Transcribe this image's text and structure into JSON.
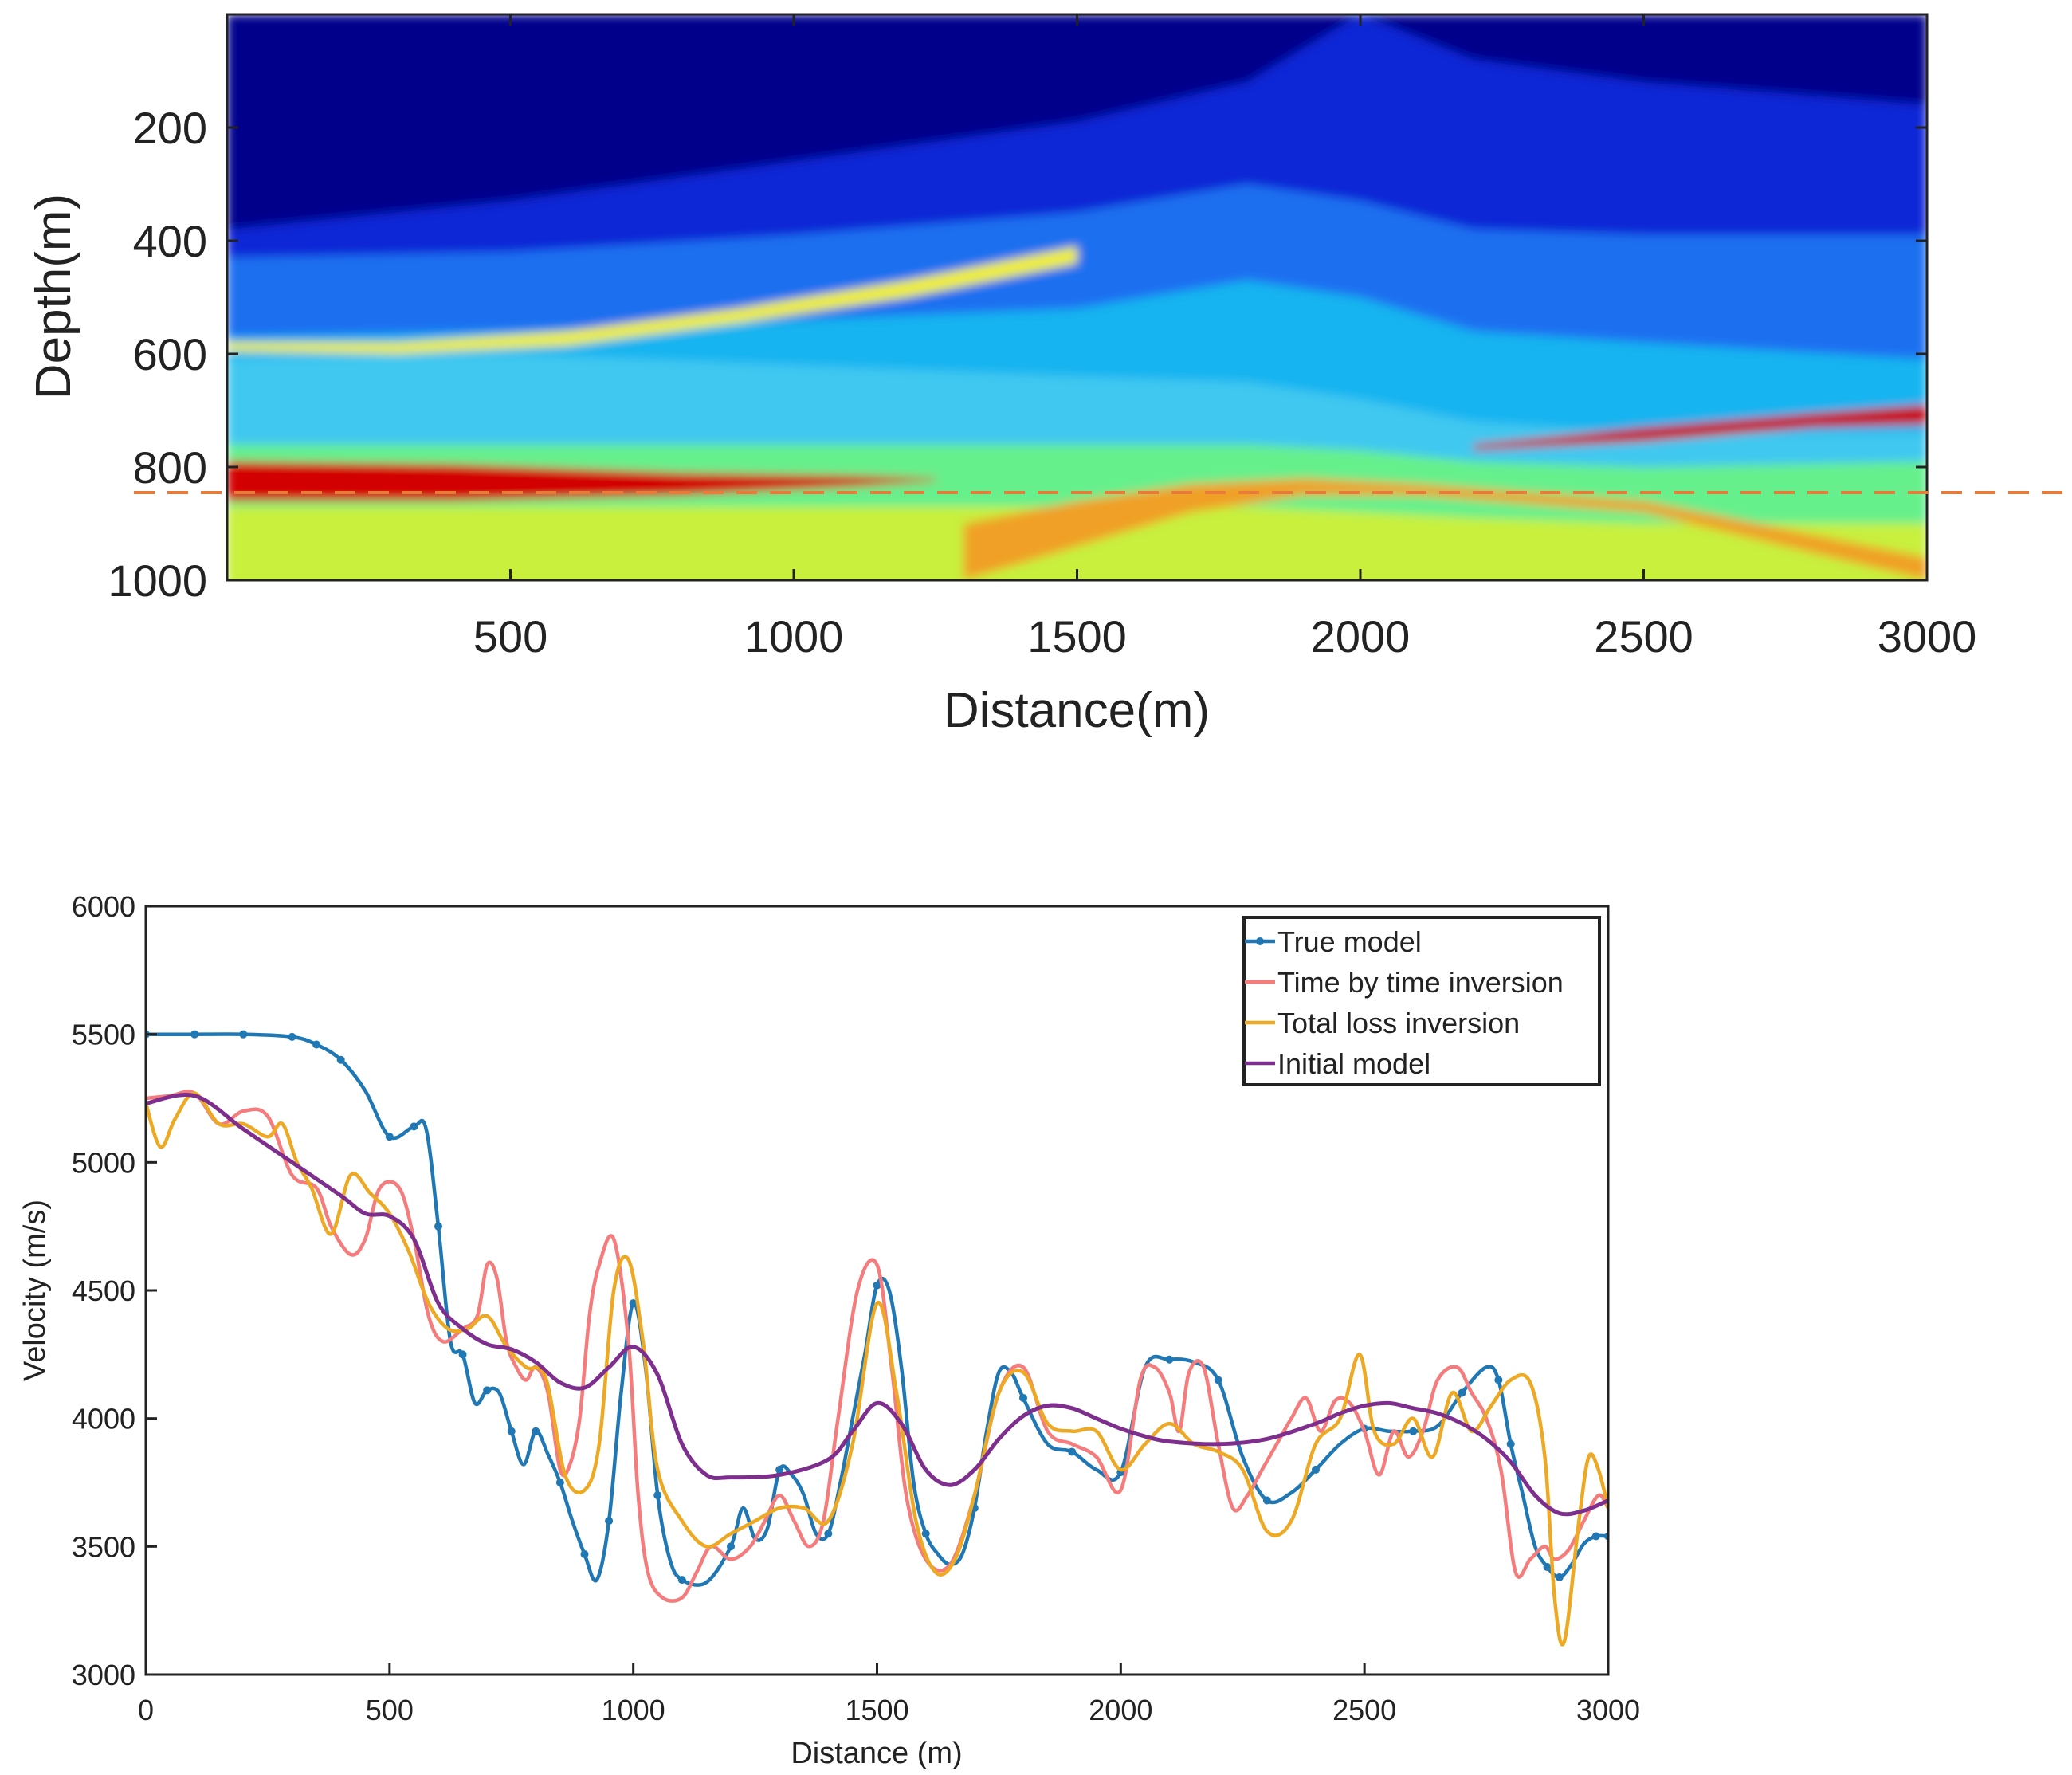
{
  "chart_data": [
    {
      "type": "heatmap",
      "title": "",
      "xlabel": "Distance(m)",
      "ylabel": "Depth(m)",
      "xlim": [
        0,
        3000
      ],
      "ylim": [
        0,
        1000
      ],
      "x_ticks": [
        500,
        1000,
        1500,
        2000,
        2500,
        3000
      ],
      "y_ticks": [
        200,
        400,
        600,
        800,
        1000
      ],
      "colormap": "jet",
      "reference_line": {
        "orientation": "horizontal",
        "depth": 845,
        "color": "#E87A3A",
        "style": "dashed"
      },
      "velocity_layers": [
        {
          "name": "top-layer-1",
          "x": [
            0,
            500,
            1000,
            1500,
            1800,
            2000,
            2200,
            2500,
            3000
          ],
          "depth": [
            0,
            0,
            0,
            0,
            0,
            0,
            0,
            0,
            0
          ],
          "color": "#00008B"
        },
        {
          "name": "top-layer-2",
          "x": [
            0,
            500,
            1000,
            1500,
            1800,
            2000,
            2200,
            2500,
            3000
          ],
          "depth": [
            380,
            330,
            260,
            190,
            120,
            0,
            80,
            120,
            160
          ],
          "color": "#0A28D6"
        },
        {
          "name": "layer-3",
          "x": [
            0,
            500,
            1000,
            1500,
            1800,
            2000,
            2200,
            2500,
            3000
          ],
          "depth": [
            430,
            420,
            390,
            350,
            300,
            330,
            380,
            390,
            390
          ],
          "color": "#1E6FF0"
        },
        {
          "name": "layer-4",
          "x": [
            0,
            500,
            1000,
            1500,
            1800,
            2000,
            2200,
            2500,
            3000
          ],
          "depth": [
            570,
            560,
            540,
            520,
            470,
            500,
            560,
            580,
            610
          ],
          "color": "#19B4F0"
        },
        {
          "name": "layer-5",
          "x": [
            0,
            500,
            1000,
            1500,
            1800,
            2000,
            2200,
            2500,
            3000
          ],
          "depth": [
            610,
            600,
            620,
            640,
            650,
            680,
            720,
            740,
            740
          ],
          "color": "#3FC8F0"
        },
        {
          "name": "layer-6",
          "x": [
            0,
            500,
            1000,
            1500,
            1800,
            2000,
            2200,
            2500,
            3000
          ],
          "depth": [
            760,
            760,
            760,
            760,
            760,
            770,
            790,
            800,
            790
          ],
          "color": "#66F08C"
        },
        {
          "name": "layer-7",
          "x": [
            0,
            500,
            1000,
            1500,
            1800,
            2000,
            2200,
            2500,
            3000
          ],
          "depth": [
            870,
            870,
            870,
            870,
            870,
            880,
            890,
            900,
            900
          ],
          "color": "#C8F03C"
        }
      ],
      "bright_reflectors": [
        {
          "name": "red-layer-left",
          "x": [
            0,
            400,
            800,
            1100,
            1250
          ],
          "top": [
            790,
            795,
            810,
            815,
            820
          ],
          "bottom": [
            860,
            860,
            850,
            835,
            825
          ],
          "color": "#D20000"
        },
        {
          "name": "red-layer-right",
          "x": [
            2200,
            2500,
            2800,
            3000
          ],
          "top": [
            760,
            730,
            705,
            690
          ],
          "bottom": [
            770,
            755,
            730,
            725
          ],
          "color": "#C80000"
        },
        {
          "name": "yellow-band-1",
          "x": [
            0,
            300,
            600,
            900,
            1200,
            1500
          ],
          "top": [
            580,
            580,
            560,
            520,
            470,
            410
          ],
          "bottom": [
            595,
            600,
            585,
            545,
            500,
            440
          ],
          "color": "#F0F028"
        },
        {
          "name": "yellow-band-2",
          "x": [
            1300,
            1500,
            1700,
            1900,
            2100,
            2500,
            3000
          ],
          "top": [
            900,
            860,
            830,
            820,
            830,
            860,
            960
          ],
          "bottom": [
            1000,
            940,
            880,
            850,
            850,
            880,
            1000
          ],
          "color": "#F0A028"
        }
      ]
    },
    {
      "type": "line",
      "title": "",
      "xlabel": "Distance (m)",
      "ylabel": "Velocity (m/s)",
      "xlim": [
        0,
        3000
      ],
      "ylim": [
        3000,
        6000
      ],
      "x_ticks": [
        0,
        500,
        1000,
        1500,
        2000,
        2500,
        3000
      ],
      "y_ticks": [
        3000,
        3500,
        4000,
        4500,
        5000,
        5500,
        6000
      ],
      "legend_position": "top-right",
      "series": [
        {
          "name": "True model",
          "color": "#1F77B4",
          "markers": true,
          "x": [
            0,
            100,
            200,
            300,
            350,
            400,
            450,
            500,
            550,
            575,
            600,
            625,
            650,
            675,
            700,
            725,
            750,
            775,
            800,
            825,
            850,
            875,
            900,
            925,
            950,
            975,
            1000,
            1025,
            1050,
            1075,
            1100,
            1150,
            1200,
            1225,
            1250,
            1275,
            1300,
            1325,
            1350,
            1375,
            1400,
            1425,
            1450,
            1475,
            1500,
            1525,
            1550,
            1575,
            1600,
            1625,
            1650,
            1675,
            1700,
            1725,
            1750,
            1775,
            1800,
            1850,
            1900,
            1950,
            2000,
            2050,
            2100,
            2150,
            2200,
            2250,
            2300,
            2350,
            2400,
            2450,
            2500,
            2550,
            2600,
            2650,
            2700,
            2750,
            2775,
            2800,
            2825,
            2850,
            2875,
            2900,
            2925,
            2950,
            2975,
            3000
          ],
          "y": [
            5500,
            5500,
            5500,
            5490,
            5460,
            5400,
            5280,
            5100,
            5140,
            5130,
            4750,
            4300,
            4250,
            4060,
            4110,
            4100,
            3950,
            3820,
            3950,
            3860,
            3750,
            3600,
            3470,
            3370,
            3600,
            4100,
            4450,
            4200,
            3700,
            3450,
            3370,
            3360,
            3500,
            3650,
            3530,
            3570,
            3800,
            3780,
            3700,
            3550,
            3550,
            3750,
            4000,
            4250,
            4520,
            4500,
            4200,
            3750,
            3550,
            3470,
            3430,
            3470,
            3650,
            3950,
            4180,
            4180,
            4080,
            3900,
            3870,
            3800,
            3790,
            4200,
            4230,
            4220,
            4150,
            3850,
            3680,
            3710,
            3800,
            3900,
            3960,
            3950,
            3950,
            3970,
            4100,
            4200,
            4150,
            3900,
            3700,
            3500,
            3420,
            3380,
            3430,
            3510,
            3540,
            3540
          ]
        },
        {
          "name": "Time by time inversion",
          "color": "#F47C7C",
          "markers": false,
          "x": [
            0,
            50,
            100,
            150,
            200,
            250,
            300,
            350,
            380,
            420,
            450,
            480,
            520,
            550,
            580,
            610,
            650,
            680,
            700,
            720,
            740,
            760,
            780,
            800,
            825,
            850,
            870,
            890,
            910,
            930,
            960,
            990,
            1010,
            1030,
            1060,
            1100,
            1130,
            1160,
            1200,
            1240,
            1270,
            1300,
            1330,
            1360,
            1390,
            1420,
            1460,
            1500,
            1530,
            1560,
            1600,
            1650,
            1700,
            1750,
            1800,
            1850,
            1900,
            1950,
            2000,
            2040,
            2070,
            2100,
            2120,
            2140,
            2170,
            2200,
            2230,
            2260,
            2290,
            2320,
            2350,
            2380,
            2410,
            2440,
            2470,
            2500,
            2530,
            2560,
            2590,
            2620,
            2650,
            2690,
            2720,
            2750,
            2780,
            2810,
            2840,
            2870,
            2890,
            2920,
            2950,
            2980,
            3000
          ],
          "y": [
            5250,
            5260,
            5270,
            5150,
            5200,
            5180,
            4950,
            4900,
            4750,
            4640,
            4700,
            4900,
            4900,
            4700,
            4400,
            4300,
            4350,
            4400,
            4600,
            4550,
            4300,
            4200,
            4150,
            4200,
            4100,
            3800,
            3820,
            4000,
            4400,
            4600,
            4700,
            4300,
            3700,
            3400,
            3300,
            3300,
            3400,
            3500,
            3450,
            3500,
            3600,
            3700,
            3600,
            3500,
            3600,
            4000,
            4500,
            4600,
            4200,
            3700,
            3450,
            3430,
            3700,
            4100,
            4200,
            3950,
            3900,
            3850,
            3720,
            4150,
            4200,
            4100,
            3950,
            4180,
            4200,
            3900,
            3650,
            3700,
            3800,
            3900,
            4000,
            4080,
            3950,
            4070,
            4060,
            3950,
            3780,
            3950,
            3850,
            3950,
            4150,
            4200,
            4100,
            4000,
            3800,
            3400,
            3450,
            3500,
            3450,
            3490,
            3600,
            3700,
            3650
          ]
        },
        {
          "name": "Total loss inversion",
          "color": "#EDA923",
          "markers": false,
          "x": [
            0,
            30,
            60,
            100,
            150,
            200,
            250,
            280,
            310,
            340,
            380,
            420,
            460,
            500,
            540,
            580,
            620,
            660,
            700,
            740,
            780,
            820,
            860,
            900,
            930,
            960,
            990,
            1020,
            1050,
            1100,
            1150,
            1200,
            1250,
            1300,
            1350,
            1400,
            1450,
            1500,
            1540,
            1580,
            1620,
            1660,
            1700,
            1750,
            1800,
            1850,
            1900,
            1950,
            2000,
            2050,
            2100,
            2150,
            2200,
            2250,
            2300,
            2350,
            2400,
            2450,
            2490,
            2520,
            2560,
            2600,
            2640,
            2680,
            2720,
            2760,
            2800,
            2840,
            2870,
            2890,
            2910,
            2940,
            2960,
            2980,
            3000
          ],
          "y": [
            5230,
            5060,
            5170,
            5270,
            5150,
            5150,
            5100,
            5150,
            5000,
            4900,
            4720,
            4950,
            4880,
            4800,
            4650,
            4450,
            4350,
            4350,
            4400,
            4280,
            4200,
            4160,
            3780,
            3720,
            3900,
            4500,
            4620,
            4300,
            3800,
            3600,
            3500,
            3550,
            3600,
            3650,
            3650,
            3600,
            3900,
            4450,
            4100,
            3600,
            3400,
            3450,
            3700,
            4100,
            4180,
            3980,
            3950,
            3950,
            3800,
            3900,
            3980,
            3900,
            3870,
            3800,
            3560,
            3600,
            3900,
            4000,
            4250,
            3950,
            3900,
            4000,
            3850,
            4100,
            3950,
            4050,
            4150,
            4140,
            3850,
            3300,
            3130,
            3600,
            3850,
            3800,
            3650
          ]
        },
        {
          "name": "Initial model",
          "color": "#7E2F8E",
          "markers": false,
          "x": [
            0,
            100,
            200,
            300,
            400,
            450,
            500,
            550,
            600,
            650,
            700,
            750,
            800,
            850,
            900,
            950,
            1000,
            1050,
            1100,
            1150,
            1200,
            1300,
            1400,
            1450,
            1500,
            1550,
            1600,
            1650,
            1700,
            1750,
            1800,
            1850,
            1900,
            1950,
            2000,
            2050,
            2100,
            2200,
            2300,
            2400,
            2450,
            2500,
            2550,
            2600,
            2650,
            2700,
            2750,
            2800,
            2850,
            2900,
            2950,
            3000
          ],
          "y": [
            5230,
            5260,
            5130,
            5000,
            4870,
            4800,
            4790,
            4700,
            4450,
            4350,
            4290,
            4270,
            4220,
            4140,
            4120,
            4200,
            4280,
            4170,
            3900,
            3780,
            3770,
            3780,
            3840,
            3950,
            4060,
            3980,
            3800,
            3740,
            3800,
            3920,
            4010,
            4050,
            4040,
            4000,
            3960,
            3930,
            3910,
            3900,
            3920,
            3980,
            4020,
            4050,
            4060,
            4040,
            4020,
            3980,
            3920,
            3830,
            3700,
            3630,
            3640,
            3680
          ]
        }
      ]
    }
  ]
}
